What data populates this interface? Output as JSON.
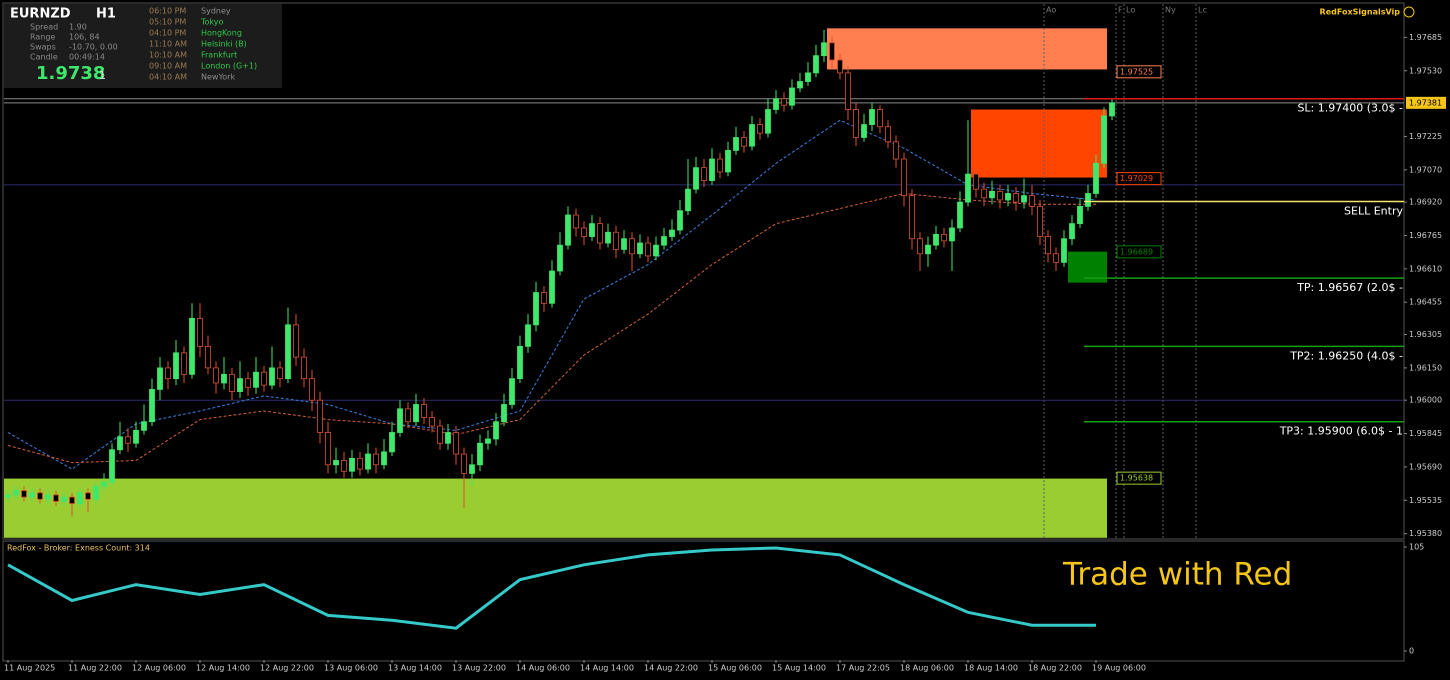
{
  "header": {
    "symbol": "EURNZD",
    "timeframe": "H1",
    "price": "1.9738",
    "price_suffix": "1",
    "rows": [
      {
        "label": "Spread",
        "value": "1.90"
      },
      {
        "label": "Range",
        "value": "106, 84"
      },
      {
        "label": "Swaps",
        "value": "-10.70, 0.00"
      },
      {
        "label": "Candle",
        "value": "00:49:14"
      }
    ]
  },
  "sessions": [
    {
      "time": "06:10 PM",
      "name": "Sydney",
      "color": "#8c8c8c"
    },
    {
      "time": "05:10 PM",
      "name": "Tokyo",
      "color": "#2ec94a"
    },
    {
      "time": "04:10 PM",
      "name": "HongKong",
      "color": "#2ec94a"
    },
    {
      "time": "11:10 AM",
      "name": "Helsinki  (B)",
      "color": "#2ec94a"
    },
    {
      "time": "10:10 AM",
      "name": "Frankfurt",
      "color": "#2ec94a"
    },
    {
      "time": "09:10 AM",
      "name": "London  (G+1)",
      "color": "#2ec94a"
    },
    {
      "time": "04:10 AM",
      "name": "NewYork",
      "color": "#8c8c8c"
    }
  ],
  "session_markers": [
    "Ao",
    "F",
    "Lo",
    "Ny",
    "Lc"
  ],
  "brand": "RedFoxSignalsVip",
  "slogan": "Trade with Red",
  "chart_data": [
    {
      "type": "candlestick",
      "categories": [
        "11 Aug 2025",
        null,
        null,
        null,
        null,
        null,
        null,
        null,
        "11 Aug 22:00",
        null,
        null,
        null,
        null,
        null,
        null,
        null,
        "12 Aug 06:00",
        null,
        null,
        null,
        null,
        null,
        null,
        null,
        "12 Aug 14:00",
        null,
        null,
        null,
        null,
        null,
        null,
        null,
        "12 Aug 22:00",
        null,
        null,
        null,
        null,
        null,
        null,
        null,
        "13 Aug 06:00",
        null,
        null,
        null,
        null,
        null,
        null,
        null,
        "13 Aug 14:00",
        null,
        null,
        null,
        null,
        null,
        null,
        null,
        "13 Aug 22:00",
        null,
        null,
        null,
        null,
        null,
        null,
        null,
        "14 Aug 06:00",
        null,
        null,
        null,
        null,
        null,
        null,
        null,
        "14 Aug 14:00",
        null,
        null,
        null,
        null,
        null,
        null,
        null,
        "14 Aug 22:00",
        null,
        null,
        null,
        null,
        null,
        null,
        null,
        "15 Aug 06:00",
        null,
        null,
        null,
        null,
        null,
        null,
        null,
        "15 Aug 14:00",
        null,
        null,
        null,
        null,
        null,
        null,
        null,
        "17 Aug 22:05",
        null,
        null,
        null,
        null,
        null,
        null,
        null,
        "18 Aug 06:00",
        null,
        null,
        null,
        null,
        null,
        null,
        null,
        "18 Aug 14:00",
        null,
        null,
        null,
        null,
        null,
        null,
        null,
        "18 Aug 22:00",
        null,
        null,
        null,
        null,
        null,
        null,
        null,
        "19 Aug 06:00",
        null,
        null
      ],
      "open": [
        1.9555,
        1.9556,
        1.9558,
        1.9555,
        1.9557,
        1.9554,
        1.9556,
        1.9553,
        1.9555,
        1.9552,
        1.9557,
        1.9554,
        1.956,
        1.9562,
        1.9577,
        1.9583,
        1.958,
        1.9586,
        1.959,
        1.9605,
        1.9615,
        1.961,
        1.9622,
        1.9612,
        1.9638,
        1.9625,
        1.9615,
        1.9608,
        1.9612,
        1.9604,
        1.961,
        1.9606,
        1.9613,
        1.9607,
        1.9615,
        1.961,
        1.9635,
        1.962,
        1.961,
        1.96,
        1.9585,
        1.957,
        1.9572,
        1.9567,
        1.9573,
        1.9568,
        1.9575,
        1.957,
        1.9576,
        1.9585,
        1.9596,
        1.959,
        1.9598,
        1.9592,
        1.9588,
        1.958,
        1.9585,
        1.9575,
        1.9566,
        1.957,
        1.958,
        1.9582,
        1.959,
        1.9598,
        1.961,
        1.9625,
        1.9635,
        1.965,
        1.9645,
        1.966,
        1.9672,
        1.9686,
        1.968,
        1.9676,
        1.9682,
        1.9673,
        1.9678,
        1.967,
        1.9675,
        1.9668,
        1.9673,
        1.9667,
        1.9672,
        1.9676,
        1.9679,
        1.9688,
        1.9698,
        1.9708,
        1.9702,
        1.9712,
        1.9706,
        1.9716,
        1.9722,
        1.9718,
        1.9728,
        1.9724,
        1.9735,
        1.974,
        1.9737,
        1.9745,
        1.9748,
        1.9752,
        1.976,
        1.9766,
        1.9758,
        1.9752,
        1.9735,
        1.9722,
        1.9728,
        1.9735,
        1.9727,
        1.972,
        1.9712,
        1.9695,
        1.9675,
        1.9668,
        1.9672,
        1.9677,
        1.9674,
        1.968,
        1.9692,
        1.9705,
        1.9698,
        1.9694,
        1.9697,
        1.9693,
        1.9696,
        1.9692,
        1.9695,
        1.969,
        1.9676,
        1.9668,
        1.9664,
        1.9675,
        1.9682,
        1.969,
        1.9696,
        1.971,
        1.9732
      ],
      "high": [
        1.9558,
        1.956,
        1.956,
        1.9559,
        1.9559,
        1.9558,
        1.9558,
        1.9557,
        1.9557,
        1.9559,
        1.9559,
        1.9562,
        1.9566,
        1.958,
        1.959,
        1.9587,
        1.959,
        1.9598,
        1.961,
        1.962,
        1.9618,
        1.9628,
        1.9625,
        1.9645,
        1.9645,
        1.963,
        1.9618,
        1.962,
        1.9615,
        1.9618,
        1.9613,
        1.962,
        1.9616,
        1.9625,
        1.9618,
        1.9643,
        1.964,
        1.9624,
        1.9614,
        1.9604,
        1.959,
        1.9578,
        1.9576,
        1.9577,
        1.9576,
        1.958,
        1.9578,
        1.9582,
        1.959,
        1.96,
        1.9599,
        1.9603,
        1.9601,
        1.9595,
        1.9591,
        1.9589,
        1.9588,
        1.9578,
        1.9575,
        1.9584,
        1.9586,
        1.9594,
        1.9603,
        1.9615,
        1.963,
        1.964,
        1.9655,
        1.9653,
        1.9665,
        1.9678,
        1.969,
        1.9689,
        1.9683,
        1.9686,
        1.9685,
        1.9682,
        1.9681,
        1.9679,
        1.9678,
        1.9677,
        1.9676,
        1.9676,
        1.968,
        1.9684,
        1.9693,
        1.9712,
        1.9713,
        1.9712,
        1.9717,
        1.9715,
        1.972,
        1.9727,
        1.9725,
        1.9732,
        1.9731,
        1.974,
        1.9744,
        1.9743,
        1.9749,
        1.9752,
        1.9757,
        1.9765,
        1.9772,
        1.9769,
        1.9761,
        1.9755,
        1.9738,
        1.9733,
        1.9738,
        1.9737,
        1.973,
        1.9723,
        1.9715,
        1.9698,
        1.9678,
        1.9676,
        1.9681,
        1.968,
        1.9684,
        1.9697,
        1.973,
        1.9708,
        1.9701,
        1.9702,
        1.97,
        1.97,
        1.9699,
        1.9703,
        1.97,
        1.9693,
        1.9679,
        1.9671,
        1.9679,
        1.9686,
        1.9694,
        1.97,
        1.9714,
        1.9736,
        1.974
      ],
      "low": [
        1.9553,
        1.9554,
        1.9553,
        1.9553,
        1.9552,
        1.9552,
        1.9551,
        1.9551,
        1.9546,
        1.955,
        1.9548,
        1.9552,
        1.9558,
        1.956,
        1.9575,
        1.9576,
        1.9578,
        1.9584,
        1.9588,
        1.96,
        1.9605,
        1.9607,
        1.9608,
        1.961,
        1.962,
        1.9612,
        1.9603,
        1.9605,
        1.96,
        1.9601,
        1.9602,
        1.9603,
        1.9604,
        1.9605,
        1.9606,
        1.9608,
        1.9616,
        1.9606,
        1.9595,
        1.958,
        1.9566,
        1.9566,
        1.9564,
        1.9564,
        1.9565,
        1.9566,
        1.9566,
        1.9568,
        1.9574,
        1.9583,
        1.9587,
        1.9588,
        1.9589,
        1.9585,
        1.9577,
        1.9577,
        1.957,
        1.955,
        1.956,
        1.9567,
        1.9577,
        1.9579,
        1.9588,
        1.9596,
        1.9608,
        1.9622,
        1.9632,
        1.9641,
        1.9643,
        1.9658,
        1.967,
        1.9676,
        1.9672,
        1.9674,
        1.967,
        1.9671,
        1.9666,
        1.9668,
        1.966,
        1.9666,
        1.9664,
        1.9665,
        1.967,
        1.9674,
        1.9677,
        1.9686,
        1.9696,
        1.9699,
        1.97,
        1.9703,
        1.9704,
        1.9714,
        1.9715,
        1.9716,
        1.9721,
        1.9722,
        1.9733,
        1.9734,
        1.9735,
        1.9743,
        1.9746,
        1.975,
        1.9757,
        1.9754,
        1.9749,
        1.973,
        1.9718,
        1.972,
        1.9725,
        1.9724,
        1.9717,
        1.9708,
        1.969,
        1.967,
        1.966,
        1.9662,
        1.967,
        1.9671,
        1.966,
        1.9678,
        1.969,
        1.9694,
        1.969,
        1.9691,
        1.9689,
        1.969,
        1.9688,
        1.9689,
        1.9686,
        1.9672,
        1.9664,
        1.966,
        1.9662,
        1.9672,
        1.968,
        1.9688,
        1.9694,
        1.9708,
        1.973
      ],
      "close": [
        1.9556,
        1.9558,
        1.9555,
        1.9557,
        1.9554,
        1.9556,
        1.9553,
        1.9555,
        1.9552,
        1.9557,
        1.9554,
        1.956,
        1.9562,
        1.9577,
        1.9583,
        1.958,
        1.9586,
        1.959,
        1.9605,
        1.9615,
        1.961,
        1.9622,
        1.9612,
        1.9638,
        1.9625,
        1.9615,
        1.9608,
        1.9612,
        1.9604,
        1.961,
        1.9606,
        1.9613,
        1.9607,
        1.9615,
        1.961,
        1.9635,
        1.962,
        1.961,
        1.96,
        1.9585,
        1.957,
        1.9572,
        1.9567,
        1.9573,
        1.9568,
        1.9575,
        1.957,
        1.9576,
        1.9585,
        1.9596,
        1.959,
        1.9598,
        1.9592,
        1.9588,
        1.958,
        1.9585,
        1.9575,
        1.9566,
        1.957,
        1.958,
        1.9582,
        1.959,
        1.9598,
        1.961,
        1.9625,
        1.9635,
        1.965,
        1.9645,
        1.966,
        1.9672,
        1.9686,
        1.968,
        1.9676,
        1.9682,
        1.9673,
        1.9678,
        1.967,
        1.9675,
        1.9668,
        1.9673,
        1.9667,
        1.9672,
        1.9676,
        1.9679,
        1.9688,
        1.9698,
        1.9708,
        1.9702,
        1.9712,
        1.9706,
        1.9716,
        1.9722,
        1.9718,
        1.9728,
        1.9724,
        1.9735,
        1.974,
        1.9737,
        1.9745,
        1.9748,
        1.9752,
        1.976,
        1.9766,
        1.9758,
        1.9752,
        1.9735,
        1.9722,
        1.9728,
        1.9735,
        1.9727,
        1.972,
        1.9712,
        1.9695,
        1.9675,
        1.9668,
        1.9672,
        1.9677,
        1.9674,
        1.968,
        1.9692,
        1.9705,
        1.9698,
        1.9694,
        1.9697,
        1.9693,
        1.9696,
        1.9692,
        1.9695,
        1.969,
        1.9676,
        1.9668,
        1.9664,
        1.9675,
        1.9682,
        1.969,
        1.9696,
        1.971,
        1.9732,
        1.97381
      ],
      "up_color": "#3ee86b",
      "down_color": "#e0502e",
      "ylim": [
        1.9536,
        1.9784
      ],
      "yticks": [
        1.97685,
        {
          "value": 1.9753,
          "label": "1.97530"
        },
        1.97225,
        {
          "value": 1.9707,
          "label": "1.97070"
        },
        {
          "value": 1.9692,
          "label": "1.96920"
        },
        1.96765,
        {
          "value": 1.9661,
          "label": "1.96610"
        },
        1.96455,
        1.96305,
        {
          "value": 1.9615,
          "label": "1.96150"
        },
        {
          "value": 1.96,
          "label": "1.96000"
        },
        1.95845,
        {
          "value": 1.9569,
          "label": "1.95690"
        },
        1.95535,
        {
          "value": 1.9538,
          "label": "1.95380"
        }
      ],
      "grid": false,
      "overlays": [
        {
          "color": "#3b7fe0",
          "values": [
            1.9585,
            1.9568,
            1.9589,
            1.9595,
            1.9602,
            1.9598,
            1.9589,
            1.9586,
            1.9595,
            1.9647,
            1.9663,
            1.9686,
            1.971,
            1.973,
            1.9717,
            1.97,
            1.9696,
            1.9693
          ]
        },
        {
          "color": "#d0603a",
          "values": [
            1.9579,
            1.9571,
            1.9572,
            1.9591,
            1.9595,
            1.9591,
            1.9589,
            1.9584,
            1.9591,
            1.9621,
            1.964,
            1.9663,
            1.9682,
            1.9689,
            1.9696,
            1.9693,
            1.9691,
            1.9691
          ]
        }
      ],
      "zones": [
        {
          "top": 1.97727,
          "bottom": 1.97536,
          "color": "#ff7f50",
          "label": 1.97525
        },
        {
          "top": 1.9735,
          "bottom": 1.97034,
          "color": "#ff4500",
          "label": 1.97029
        },
        {
          "top": 1.9669,
          "bottom": 1.96546,
          "color": "#008000",
          "label": 1.96689
        },
        {
          "top": 1.95636,
          "bottom": 1.95361,
          "color": "#9acd32",
          "label": 1.95638
        }
      ],
      "price_lines": [
        {
          "value": 1.974,
          "color": "#8a8a8a"
        },
        {
          "value": 1.97381,
          "color": "#8a8a8a"
        },
        {
          "value": 1.97,
          "color": "#2c2c6e"
        },
        {
          "value": 1.96,
          "color": "#2c2c6e"
        }
      ],
      "trade_lines": [
        {
          "value": 1.974,
          "color": "#e01818",
          "label": "SL: 1.97400 (3.0$ -"
        },
        {
          "value": 1.96923,
          "color": "#f5e56b",
          "label": "SELL Entry"
        },
        {
          "value": 1.96567,
          "color": "#14a014",
          "label": "TP: 1.96567 (2.0$ -"
        },
        {
          "value": 1.9625,
          "color": "#14a014",
          "label": "TP2: 1.96250 (4.0$ -"
        },
        {
          "value": 1.959,
          "color": "#14a014",
          "label": "TP3: 1.95900 (6.0$ - 1"
        }
      ],
      "current_price": 1.97381
    },
    {
      "type": "line",
      "title": "RedFox -  Broker: Exness    Count: 314",
      "series": [
        {
          "color": "#35c9c9",
          "values": [
            87,
            51,
            67,
            57,
            67,
            36,
            31,
            23,
            72,
            87,
            97,
            102,
            104,
            97,
            67,
            39,
            26,
            26
          ]
        }
      ],
      "ylim": [
        0,
        105
      ],
      "yticks": [
        105,
        0
      ]
    }
  ]
}
